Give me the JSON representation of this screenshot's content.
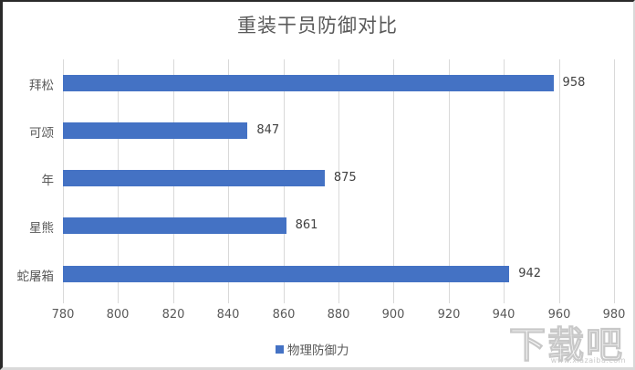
{
  "chart_data": {
    "type": "bar",
    "orientation": "horizontal",
    "title": "重装干员防御对比",
    "categories": [
      "拜松",
      "可颂",
      "年",
      "星熊",
      "蛇屠箱"
    ],
    "series": [
      {
        "name": "物理防御力",
        "color": "#4472c4",
        "values": [
          958,
          847,
          875,
          861,
          942
        ]
      }
    ],
    "values": [
      958,
      847,
      875,
      861,
      942
    ],
    "xlabel": "",
    "ylabel": "",
    "xlim": [
      780,
      980
    ],
    "xticks": [
      "780",
      "800",
      "820",
      "840",
      "860",
      "880",
      "900",
      "920",
      "940",
      "960",
      "980"
    ],
    "grid": true,
    "data_labels": [
      "958",
      "847",
      "875",
      "861",
      "942"
    ],
    "legend_position": "bottom"
  },
  "legend": {
    "label": "物理防御力",
    "color": "#4472c4"
  },
  "watermark": {
    "text": "下载吧",
    "url": "www.xiazaiba.com"
  }
}
